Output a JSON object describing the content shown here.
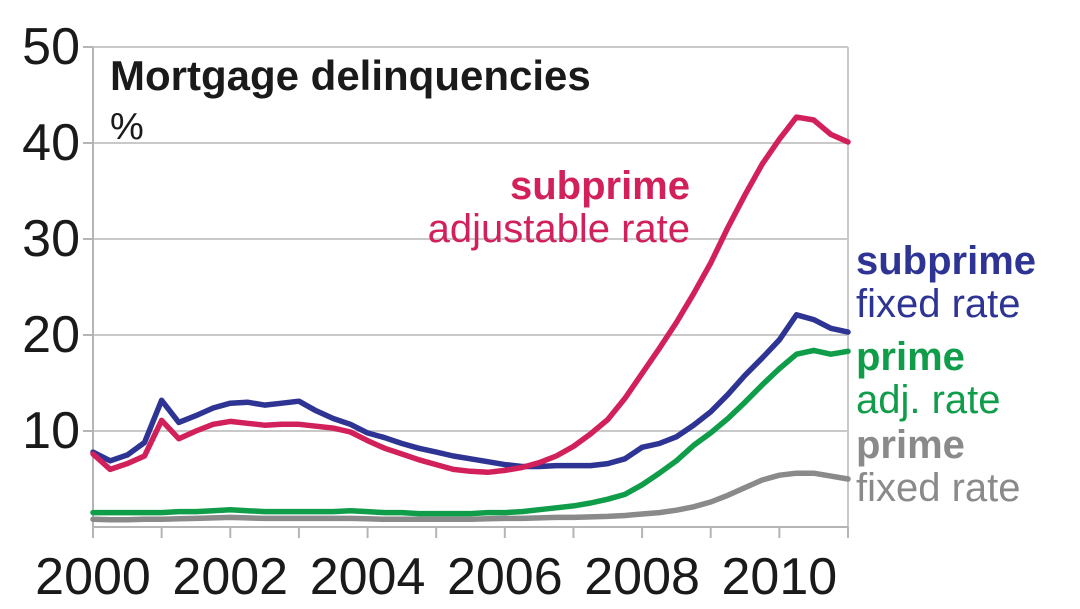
{
  "chart_data": {
    "type": "line",
    "title": "Mortgage delinquencies",
    "ylabel": "%",
    "xlabel": "",
    "xlim": [
      2000,
      2011
    ],
    "ylim": [
      0,
      50
    ],
    "grid": "horizontal",
    "legend_position": "inline-annotations",
    "y_ticks": [
      50,
      40,
      30,
      20,
      10
    ],
    "x_tick_years": [
      2000,
      2002,
      2004,
      2006,
      2008,
      2010
    ],
    "x_minor_tick_years": [
      2000,
      2001,
      2002,
      2003,
      2004,
      2005,
      2006,
      2007,
      2008,
      2009,
      2010,
      2011
    ],
    "x": [
      2000.0,
      2000.25,
      2000.5,
      2000.75,
      2001.0,
      2001.25,
      2001.5,
      2001.75,
      2002.0,
      2002.25,
      2002.5,
      2002.75,
      2003.0,
      2003.25,
      2003.5,
      2003.75,
      2004.0,
      2004.25,
      2004.5,
      2004.75,
      2005.0,
      2005.25,
      2005.5,
      2005.75,
      2006.0,
      2006.25,
      2006.5,
      2006.75,
      2007.0,
      2007.25,
      2007.5,
      2007.75,
      2008.0,
      2008.25,
      2008.5,
      2008.75,
      2009.0,
      2009.25,
      2009.5,
      2009.75,
      2010.0,
      2010.25,
      2010.5,
      2010.75,
      2011.0
    ],
    "series": [
      {
        "id": "prime_fixed",
        "label_bold": "prime",
        "label_rest": "fixed rate",
        "color": "#8a8a8a",
        "values": [
          0.8,
          0.75,
          0.75,
          0.8,
          0.8,
          0.85,
          0.9,
          0.95,
          1.0,
          0.95,
          0.9,
          0.9,
          0.9,
          0.9,
          0.9,
          0.9,
          0.85,
          0.8,
          0.8,
          0.8,
          0.8,
          0.8,
          0.8,
          0.85,
          0.9,
          0.9,
          0.95,
          1.0,
          1.0,
          1.05,
          1.1,
          1.2,
          1.35,
          1.5,
          1.75,
          2.1,
          2.6,
          3.3,
          4.1,
          4.9,
          5.4,
          5.6,
          5.6,
          5.3,
          5.0
        ]
      },
      {
        "id": "prime_arm",
        "label_bold": "prime",
        "label_rest": "adj. rate",
        "color": "#0f9d4a",
        "values": [
          1.5,
          1.5,
          1.5,
          1.5,
          1.5,
          1.6,
          1.6,
          1.7,
          1.8,
          1.7,
          1.6,
          1.6,
          1.6,
          1.6,
          1.6,
          1.7,
          1.6,
          1.5,
          1.5,
          1.4,
          1.4,
          1.4,
          1.4,
          1.5,
          1.5,
          1.6,
          1.8,
          2.0,
          2.2,
          2.5,
          2.9,
          3.4,
          4.4,
          5.6,
          6.9,
          8.5,
          9.8,
          11.3,
          13.0,
          14.8,
          16.5,
          18.0,
          18.4,
          18.0,
          18.3
        ]
      },
      {
        "id": "subprime_fixed",
        "label_bold": "subprime",
        "label_rest": "fixed rate",
        "color": "#2e3493",
        "values": [
          7.8,
          6.9,
          7.5,
          8.8,
          13.2,
          10.9,
          11.6,
          12.4,
          12.9,
          13.0,
          12.7,
          12.9,
          13.1,
          12.1,
          11.3,
          10.7,
          9.8,
          9.3,
          8.7,
          8.2,
          7.8,
          7.4,
          7.1,
          6.8,
          6.5,
          6.3,
          6.3,
          6.4,
          6.4,
          6.4,
          6.6,
          7.1,
          8.3,
          8.7,
          9.4,
          10.6,
          12.0,
          13.8,
          15.8,
          17.6,
          19.5,
          22.1,
          21.6,
          20.7,
          20.3
        ]
      },
      {
        "id": "subprime_arm",
        "label_bold": "subprime",
        "label_rest": "adjustable rate",
        "color": "#d1205a",
        "values": [
          7.6,
          6.0,
          6.6,
          7.4,
          11.1,
          9.2,
          10.0,
          10.7,
          11.0,
          10.8,
          10.6,
          10.7,
          10.7,
          10.5,
          10.3,
          9.9,
          9.0,
          8.2,
          7.6,
          7.0,
          6.5,
          6.0,
          5.8,
          5.7,
          5.9,
          6.2,
          6.7,
          7.4,
          8.4,
          9.7,
          11.2,
          13.4,
          16.0,
          18.6,
          21.3,
          24.3,
          27.5,
          31.2,
          34.6,
          37.8,
          40.4,
          42.7,
          42.4,
          40.9,
          40.1
        ]
      }
    ],
    "colors": {
      "grid": "#c9c9c9",
      "axis": "#b5b5b5",
      "text": "#1a1a1a"
    }
  }
}
